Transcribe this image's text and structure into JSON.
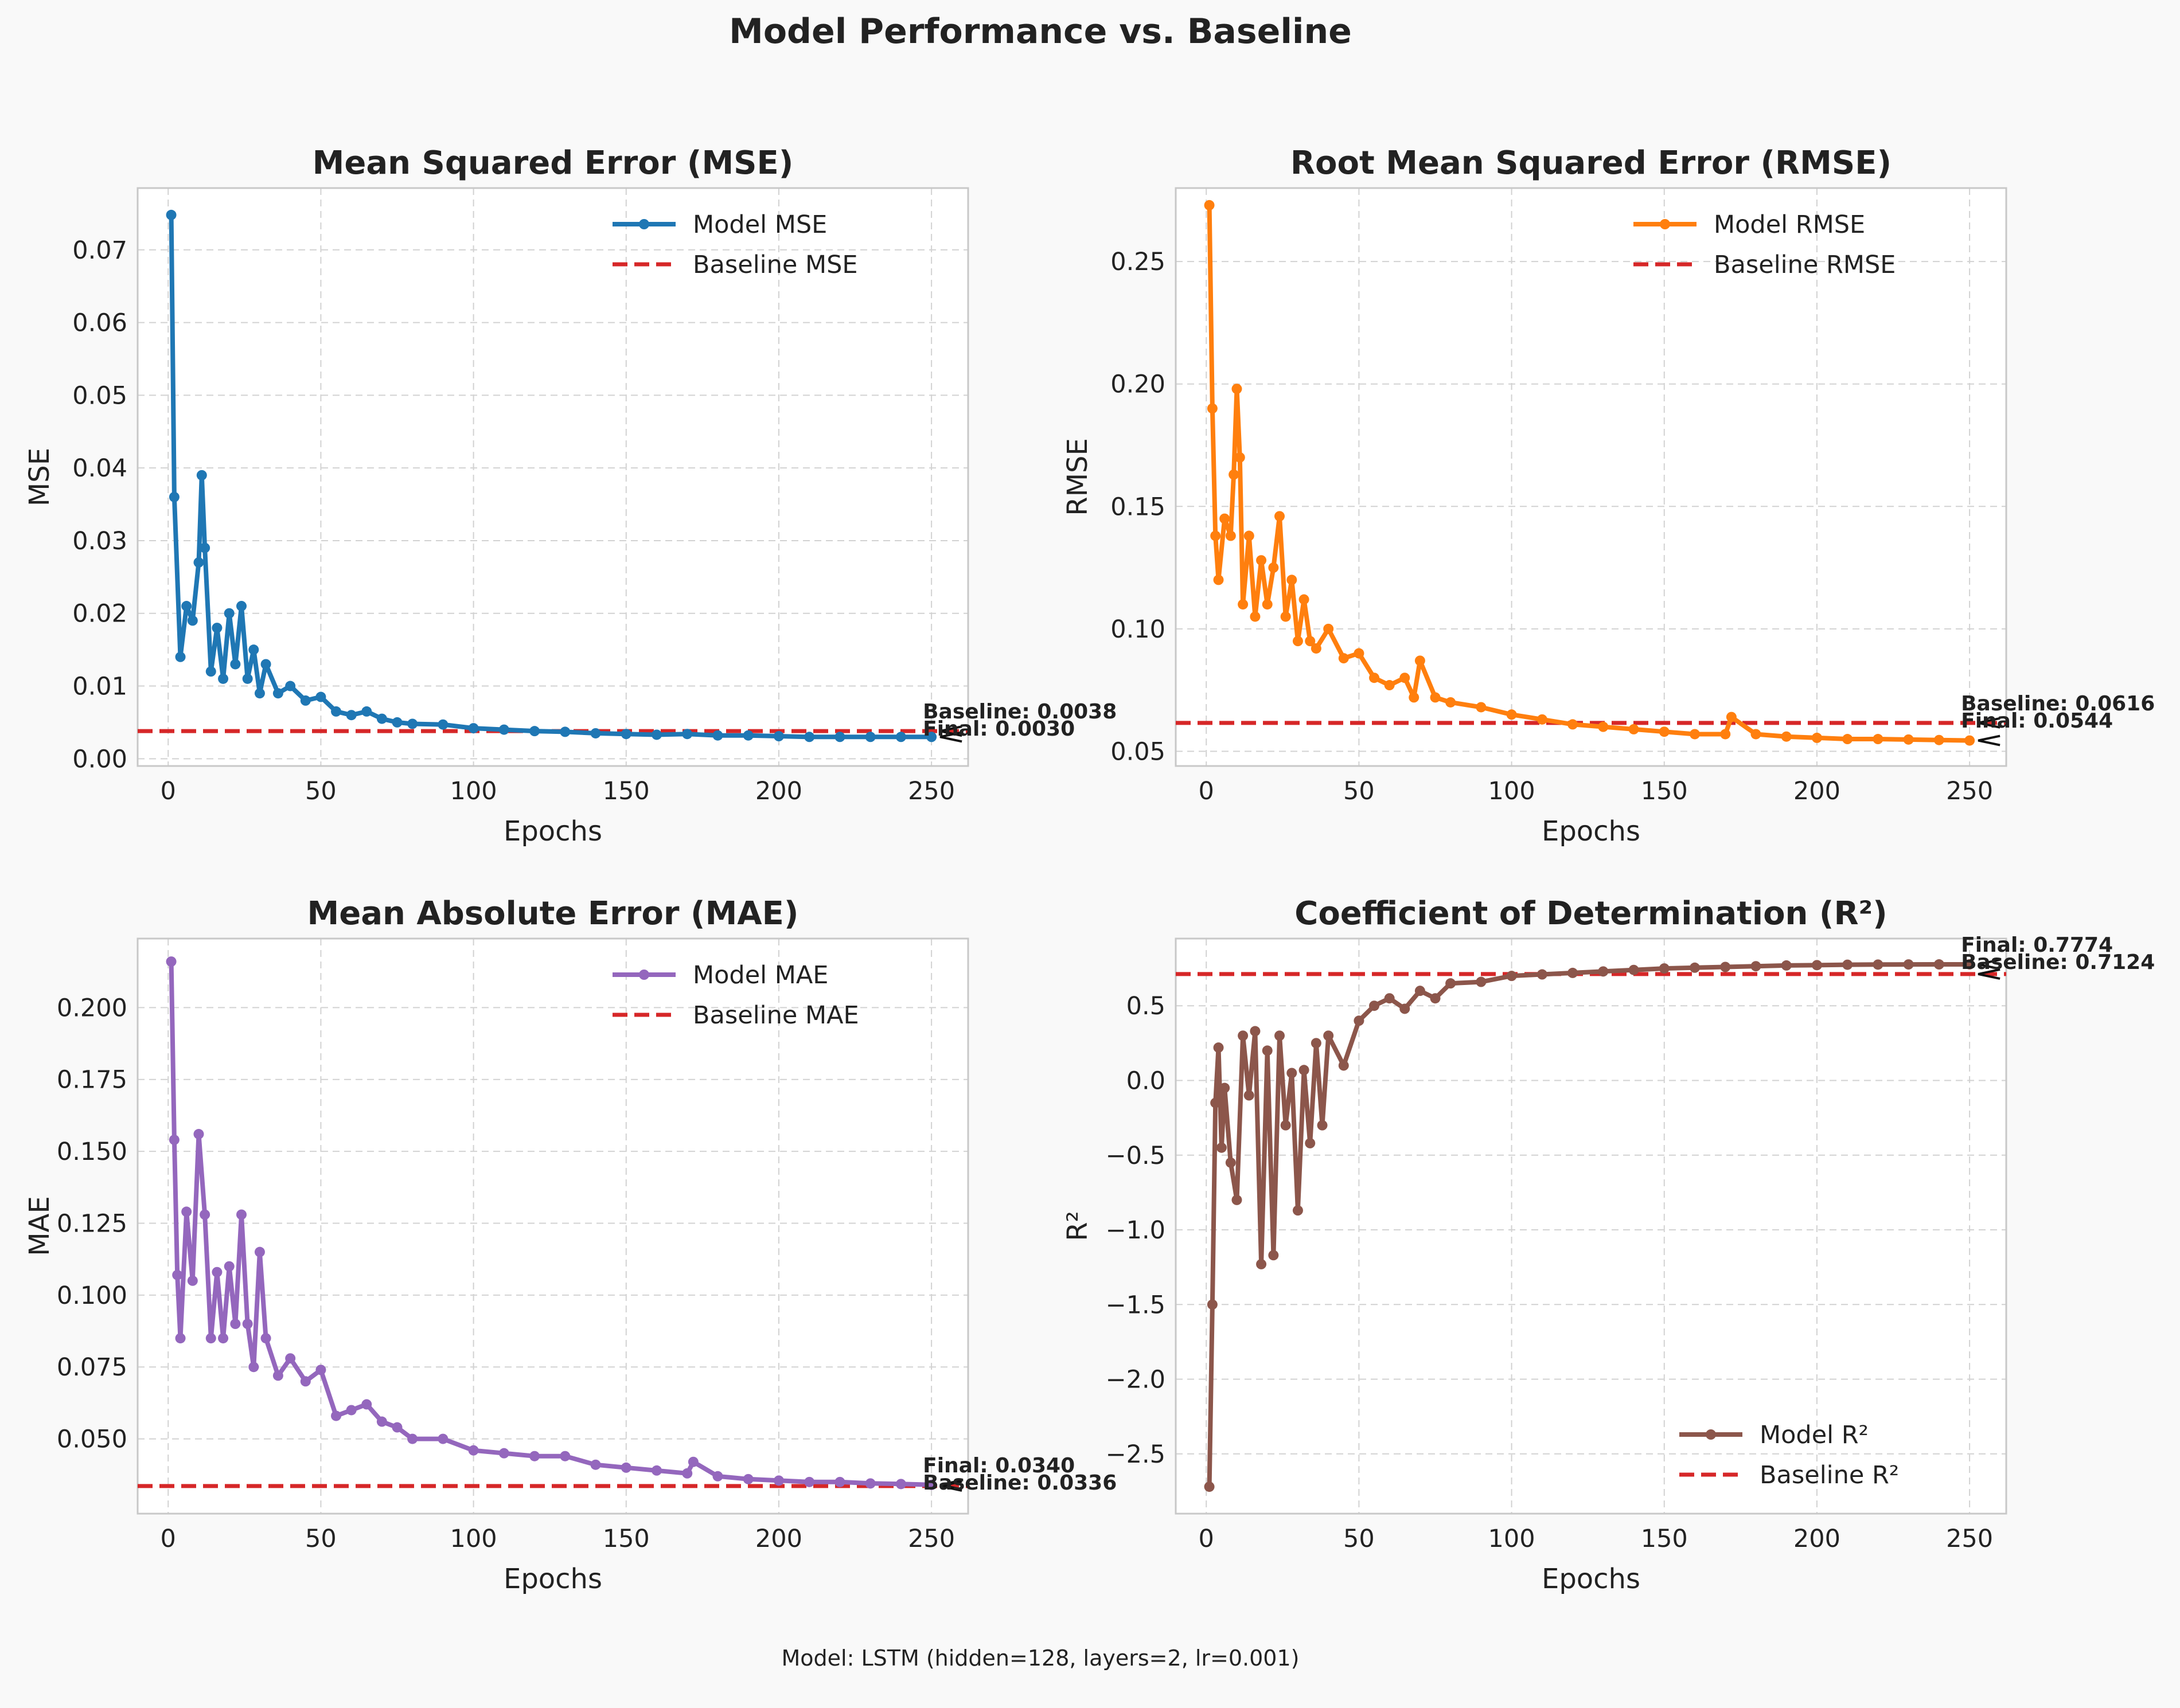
{
  "figure": {
    "title": "Model Performance vs. Baseline",
    "footnote": "Model: LSTM (hidden=128, layers=2, lr=0.001)"
  },
  "chart_data": [
    {
      "type": "line",
      "title": "Mean Squared Error (MSE)",
      "xlabel": "Epochs",
      "ylabel": "MSE",
      "xlim": [
        -10,
        262
      ],
      "ylim": [
        -0.001,
        0.0785
      ],
      "xticks": [
        0,
        50,
        100,
        150,
        200,
        250
      ],
      "yticks": [
        0.0,
        0.01,
        0.02,
        0.03,
        0.04,
        0.05,
        0.06,
        0.07
      ],
      "ytick_labels": [
        "0.00",
        "0.01",
        "0.02",
        "0.03",
        "0.04",
        "0.05",
        "0.06",
        "0.07"
      ],
      "grid": true,
      "legend": "top-right",
      "series": [
        {
          "name": "Model MSE",
          "color": "#1f77b4",
          "x": [
            1,
            2,
            4,
            6,
            8,
            10,
            11,
            12,
            14,
            16,
            18,
            20,
            22,
            24,
            26,
            28,
            30,
            32,
            36,
            40,
            45,
            50,
            55,
            60,
            65,
            70,
            75,
            80,
            90,
            100,
            110,
            120,
            130,
            140,
            150,
            160,
            170,
            180,
            190,
            200,
            210,
            220,
            230,
            240,
            250
          ],
          "values": [
            0.0748,
            0.036,
            0.014,
            0.021,
            0.019,
            0.027,
            0.039,
            0.029,
            0.012,
            0.018,
            0.011,
            0.02,
            0.013,
            0.021,
            0.011,
            0.015,
            0.009,
            0.013,
            0.009,
            0.01,
            0.008,
            0.0085,
            0.0065,
            0.006,
            0.0065,
            0.0055,
            0.005,
            0.0048,
            0.0047,
            0.0042,
            0.004,
            0.0038,
            0.0037,
            0.0035,
            0.0034,
            0.0033,
            0.0034,
            0.0032,
            0.0032,
            0.0031,
            0.003,
            0.003,
            0.003,
            0.003,
            0.003
          ]
        },
        {
          "name": "Baseline MSE",
          "color": "#d62728",
          "dashed": true,
          "value": 0.0038
        }
      ],
      "annotations": [
        {
          "text": "Baseline: 0.0038",
          "x": 250,
          "y": 0.0038
        },
        {
          "text": "Final: 0.0030",
          "x": 250,
          "y": 0.003
        }
      ]
    },
    {
      "type": "line",
      "title": "Root Mean Squared Error (RMSE)",
      "xlabel": "Epochs",
      "ylabel": "RMSE",
      "xlim": [
        -10,
        262
      ],
      "ylim": [
        0.044,
        0.28
      ],
      "xticks": [
        0,
        50,
        100,
        150,
        200,
        250
      ],
      "yticks": [
        0.05,
        0.1,
        0.15,
        0.2,
        0.25
      ],
      "ytick_labels": [
        "0.05",
        "0.10",
        "0.15",
        "0.20",
        "0.25"
      ],
      "grid": true,
      "legend": "top-right",
      "series": [
        {
          "name": "Model RMSE",
          "color": "#ff7f0e",
          "x": [
            1,
            2,
            3,
            4,
            6,
            8,
            9,
            10,
            11,
            12,
            14,
            16,
            18,
            20,
            22,
            24,
            26,
            28,
            30,
            32,
            34,
            36,
            40,
            45,
            50,
            55,
            60,
            65,
            68,
            70,
            75,
            80,
            90,
            100,
            110,
            120,
            130,
            140,
            150,
            160,
            170,
            172,
            180,
            190,
            200,
            210,
            220,
            230,
            240,
            250
          ],
          "values": [
            0.273,
            0.19,
            0.138,
            0.12,
            0.145,
            0.138,
            0.163,
            0.198,
            0.17,
            0.11,
            0.138,
            0.105,
            0.128,
            0.11,
            0.125,
            0.146,
            0.105,
            0.12,
            0.095,
            0.112,
            0.095,
            0.092,
            0.1,
            0.088,
            0.09,
            0.08,
            0.077,
            0.08,
            0.072,
            0.087,
            0.072,
            0.07,
            0.068,
            0.065,
            0.063,
            0.061,
            0.06,
            0.059,
            0.058,
            0.057,
            0.057,
            0.064,
            0.057,
            0.056,
            0.0555,
            0.055,
            0.055,
            0.0548,
            0.0546,
            0.0544
          ]
        },
        {
          "name": "Baseline RMSE",
          "color": "#d62728",
          "dashed": true,
          "value": 0.0616
        }
      ],
      "annotations": [
        {
          "text": "Baseline: 0.0616",
          "x": 250,
          "y": 0.0616
        },
        {
          "text": "Final: 0.0544",
          "x": 250,
          "y": 0.0544
        }
      ]
    },
    {
      "type": "line",
      "title": "Mean Absolute Error (MAE)",
      "xlabel": "Epochs",
      "ylabel": "MAE",
      "xlim": [
        -10,
        262
      ],
      "ylim": [
        0.024,
        0.224
      ],
      "xticks": [
        0,
        50,
        100,
        150,
        200,
        250
      ],
      "yticks": [
        0.05,
        0.075,
        0.1,
        0.125,
        0.15,
        0.175,
        0.2
      ],
      "ytick_labels": [
        "0.050",
        "0.075",
        "0.100",
        "0.125",
        "0.150",
        "0.175",
        "0.200"
      ],
      "grid": true,
      "legend": "top-right",
      "series": [
        {
          "name": "Model MAE",
          "color": "#9467bd",
          "x": [
            1,
            2,
            3,
            4,
            6,
            8,
            10,
            12,
            14,
            16,
            18,
            20,
            22,
            24,
            26,
            28,
            30,
            32,
            36,
            40,
            45,
            50,
            55,
            60,
            65,
            70,
            75,
            80,
            90,
            100,
            110,
            120,
            130,
            140,
            150,
            160,
            170,
            172,
            180,
            190,
            200,
            210,
            220,
            230,
            240,
            250
          ],
          "values": [
            0.216,
            0.154,
            0.107,
            0.085,
            0.129,
            0.105,
            0.156,
            0.128,
            0.085,
            0.108,
            0.085,
            0.11,
            0.09,
            0.128,
            0.09,
            0.075,
            0.115,
            0.085,
            0.072,
            0.078,
            0.07,
            0.074,
            0.058,
            0.06,
            0.062,
            0.056,
            0.054,
            0.05,
            0.05,
            0.046,
            0.045,
            0.044,
            0.044,
            0.041,
            0.04,
            0.039,
            0.038,
            0.042,
            0.037,
            0.036,
            0.0355,
            0.035,
            0.035,
            0.0345,
            0.0343,
            0.034
          ]
        },
        {
          "name": "Baseline MAE",
          "color": "#d62728",
          "dashed": true,
          "value": 0.0336
        }
      ],
      "annotations": [
        {
          "text": "Final: 0.0340",
          "x": 250,
          "y": 0.034
        },
        {
          "text": "Baseline: 0.0336",
          "x": 250,
          "y": 0.0336
        }
      ]
    },
    {
      "type": "line",
      "title": "Coefficient of Determination (R²)",
      "xlabel": "Epochs",
      "ylabel": "R²",
      "xlim": [
        -10,
        262
      ],
      "ylim": [
        -2.9,
        0.95
      ],
      "xticks": [
        0,
        50,
        100,
        150,
        200,
        250
      ],
      "yticks": [
        -2.5,
        -2.0,
        -1.5,
        -1.0,
        -0.5,
        0.0,
        0.5
      ],
      "ytick_labels": [
        "−2.5",
        "−2.0",
        "−1.5",
        "−1.0",
        "−0.5",
        "0.0",
        "0.5"
      ],
      "grid": true,
      "legend": "bottom-right",
      "series": [
        {
          "name": "Model R²",
          "color": "#8c564b",
          "x": [
            1,
            2,
            3,
            4,
            5,
            6,
            8,
            10,
            12,
            14,
            16,
            18,
            20,
            22,
            24,
            26,
            28,
            30,
            32,
            34,
            36,
            38,
            40,
            45,
            50,
            55,
            60,
            65,
            70,
            75,
            80,
            90,
            100,
            110,
            120,
            130,
            140,
            150,
            160,
            170,
            180,
            190,
            200,
            210,
            220,
            230,
            240,
            250
          ],
          "values": [
            -2.72,
            -1.5,
            -0.15,
            0.22,
            -0.45,
            -0.05,
            -0.55,
            -0.8,
            0.3,
            -0.1,
            0.33,
            -1.23,
            0.2,
            -1.17,
            0.3,
            -0.3,
            0.05,
            -0.87,
            0.07,
            -0.42,
            0.25,
            -0.3,
            0.3,
            0.1,
            0.4,
            0.5,
            0.55,
            0.48,
            0.6,
            0.55,
            0.65,
            0.66,
            0.7,
            0.71,
            0.72,
            0.73,
            0.74,
            0.75,
            0.755,
            0.76,
            0.765,
            0.77,
            0.772,
            0.775,
            0.776,
            0.777,
            0.7772,
            0.7774
          ]
        },
        {
          "name": "Baseline R²",
          "color": "#d62728",
          "dashed": true,
          "value": 0.7124
        }
      ],
      "annotations": [
        {
          "text": "Final: 0.7774",
          "x": 250,
          "y": 0.7774
        },
        {
          "text": "Baseline: 0.7124",
          "x": 250,
          "y": 0.7124
        }
      ]
    }
  ]
}
